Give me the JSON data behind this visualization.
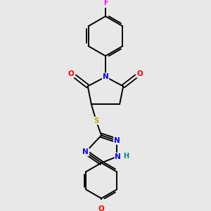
{
  "bg_color": "#e8e8e8",
  "bond_color": "#000000",
  "atom_colors": {
    "F": "#ff00ff",
    "O": "#ff0000",
    "N": "#0000ff",
    "S": "#bbaa00",
    "H": "#008888",
    "C": "#000000"
  },
  "figsize": [
    3.0,
    3.0
  ],
  "dpi": 100
}
